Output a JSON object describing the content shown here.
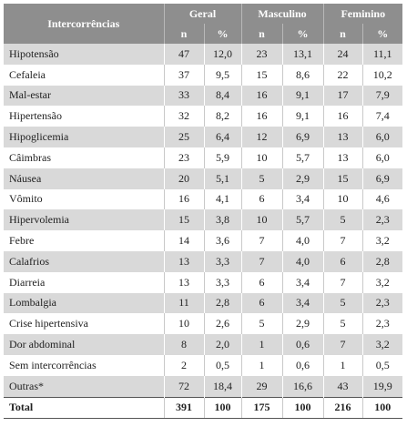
{
  "table": {
    "header": {
      "title": "Intercorrências",
      "groups": [
        "Geral",
        "Masculino",
        "Feminino"
      ],
      "sub": [
        "n",
        "%",
        "n",
        "%",
        "n",
        "%"
      ]
    },
    "rows": [
      [
        "Hipotensão",
        "47",
        "12,0",
        "23",
        "13,1",
        "24",
        "11,1"
      ],
      [
        "Cefaleia",
        "37",
        "9,5",
        "15",
        "8,6",
        "22",
        "10,2"
      ],
      [
        "Mal-estar",
        "33",
        "8,4",
        "16",
        "9,1",
        "17",
        "7,9"
      ],
      [
        "Hipertensão",
        "32",
        "8,2",
        "16",
        "9,1",
        "16",
        "7,4"
      ],
      [
        "Hipoglicemia",
        "25",
        "6,4",
        "12",
        "6,9",
        "13",
        "6,0"
      ],
      [
        "Câimbras",
        "23",
        "5,9",
        "10",
        "5,7",
        "13",
        "6,0"
      ],
      [
        "Náusea",
        "20",
        "5,1",
        "5",
        "2,9",
        "15",
        "6,9"
      ],
      [
        "Vômito",
        "16",
        "4,1",
        "6",
        "3,4",
        "10",
        "4,6"
      ],
      [
        "Hipervolemia",
        "15",
        "3,8",
        "10",
        "5,7",
        "5",
        "2,3"
      ],
      [
        "Febre",
        "14",
        "3,6",
        "7",
        "4,0",
        "7",
        "3,2"
      ],
      [
        "Calafrios",
        "13",
        "3,3",
        "7",
        "4,0",
        "6",
        "2,8"
      ],
      [
        "Diarreia",
        "13",
        "3,3",
        "6",
        "3,4",
        "7",
        "3,2"
      ],
      [
        "Lombalgia",
        "11",
        "2,8",
        "6",
        "3,4",
        "5",
        "2,3"
      ],
      [
        "Crise hipertensiva",
        "10",
        "2,6",
        "5",
        "2,9",
        "5",
        "2,3"
      ],
      [
        "Dor abdominal",
        "8",
        "2,0",
        "1",
        "0,6",
        "7",
        "3,2"
      ],
      [
        "Sem intercorrências",
        "2",
        "0,5",
        "1",
        "0,6",
        "1",
        "0,5"
      ],
      [
        "Outras*",
        "72",
        "18,4",
        "29",
        "16,6",
        "43",
        "19,9"
      ]
    ],
    "total": [
      "Total",
      "391",
      "100",
      "175",
      "100",
      "216",
      "100"
    ]
  }
}
